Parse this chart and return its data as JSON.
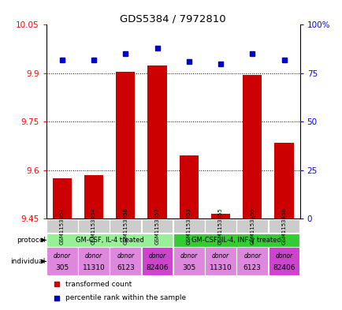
{
  "title": "GDS5384 / 7972810",
  "samples": [
    "GSM1153452",
    "GSM1153454",
    "GSM1153456",
    "GSM1153457",
    "GSM1153453",
    "GSM1153455",
    "GSM1153459",
    "GSM1153458"
  ],
  "transformed_counts": [
    9.575,
    9.585,
    9.905,
    9.925,
    9.645,
    9.465,
    9.895,
    9.685
  ],
  "percentile_ranks": [
    82,
    82,
    85,
    88,
    81,
    80,
    85,
    82
  ],
  "ylim_left": [
    9.45,
    10.05
  ],
  "ylim_right": [
    0,
    100
  ],
  "yticks_left": [
    9.45,
    9.6,
    9.75,
    9.9,
    10.05
  ],
  "yticks_right": [
    0,
    25,
    50,
    75,
    100
  ],
  "ytick_labels_right": [
    "0",
    "25",
    "50",
    "75",
    "100%"
  ],
  "bar_color": "#cc0000",
  "dot_color": "#0000cc",
  "protocol_groups": [
    {
      "label": "GM-CSF, IL-4 treated",
      "start": 0,
      "end": 4,
      "color": "#99ee99"
    },
    {
      "label": "GM-CSF, IL-4, INF-γ treated",
      "start": 4,
      "end": 8,
      "color": "#33cc33"
    }
  ],
  "individuals": [
    {
      "label": "donor\n305",
      "color": "#dd88dd"
    },
    {
      "label": "donor\n11310",
      "color": "#dd88dd"
    },
    {
      "label": "donor\n6123",
      "color": "#dd88dd"
    },
    {
      "label": "donor\n82406",
      "color": "#cc44cc"
    },
    {
      "label": "donor\n305",
      "color": "#dd88dd"
    },
    {
      "label": "donor\n11310",
      "color": "#dd88dd"
    },
    {
      "label": "donor\n6123",
      "color": "#dd88dd"
    },
    {
      "label": "donor\n82406",
      "color": "#cc44cc"
    }
  ],
  "legend_items": [
    {
      "color": "#cc0000",
      "label": "transformed count"
    },
    {
      "color": "#0000cc",
      "label": "percentile rank within the sample"
    }
  ],
  "sample_box_color": "#cccccc",
  "baseline": 9.45
}
